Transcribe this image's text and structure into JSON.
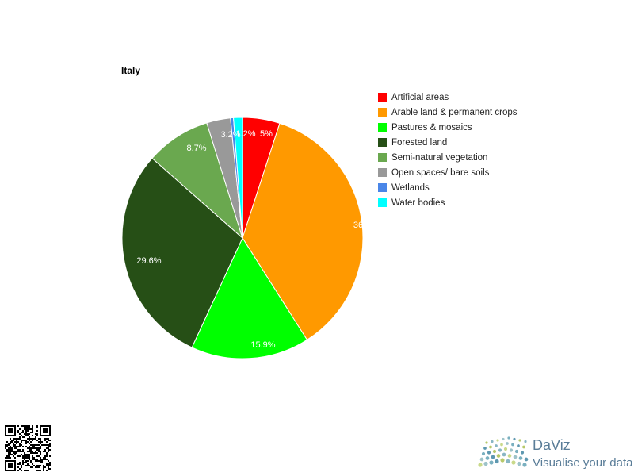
{
  "chart_data": {
    "type": "pie",
    "title": "Italy",
    "slices": [
      {
        "name": "Artificial areas",
        "value": 5.0,
        "label": "5%",
        "color": "#ff0000"
      },
      {
        "name": "Arable land & permanent crops",
        "value": 36.0,
        "label": "36",
        "color": "#ff9900"
      },
      {
        "name": "Pastures & mosaics",
        "value": 15.9,
        "label": "15.9%",
        "color": "#00ff00"
      },
      {
        "name": "Forested land",
        "value": 29.6,
        "label": "29.6%",
        "color": "#264f16"
      },
      {
        "name": "Semi-natural vegetation",
        "value": 8.7,
        "label": "8.7%",
        "color": "#6aa84f"
      },
      {
        "name": "Open spaces/ bare soils",
        "value": 3.2,
        "label": "3.2%",
        "color": "#999999"
      },
      {
        "name": "Wetlands",
        "value": 0.4,
        "label": "",
        "color": "#4a86e8"
      },
      {
        "name": "Water bodies",
        "value": 1.2,
        "label": "1.2%",
        "color": "#00ffff"
      }
    ],
    "legend_position": "right"
  },
  "branding": {
    "name": "DaViz",
    "tagline": "Visualise your data"
  }
}
